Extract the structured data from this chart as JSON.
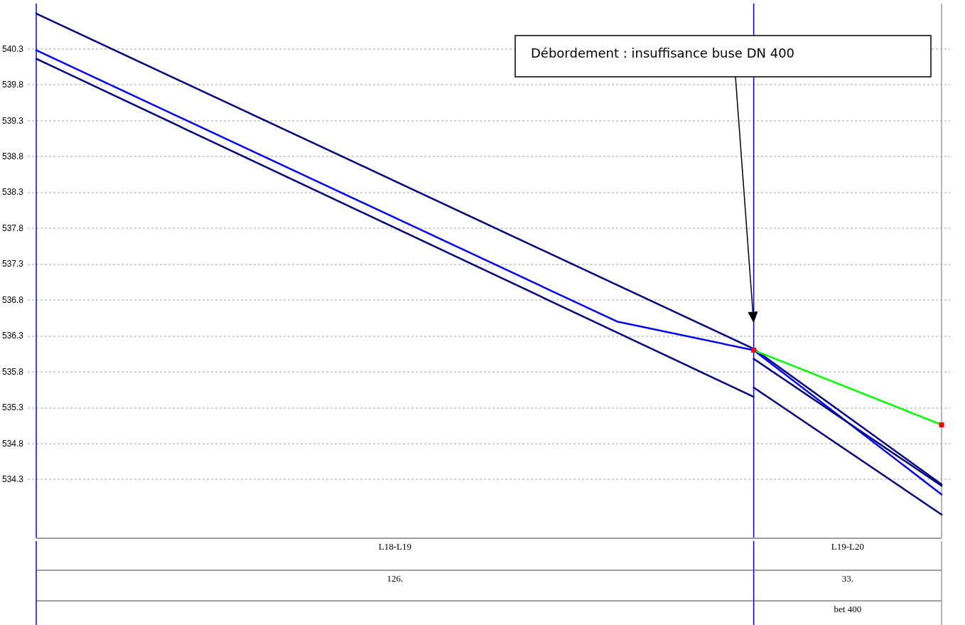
{
  "chart_data": {
    "type": "line",
    "annotations": [
      "Débordement : insuffisance buse DN 400",
      "L18-L19",
      "126.",
      "L19-L20",
      "33.",
      "bet 400"
    ],
    "categories": [
      null,
      null,
      null,
      null,
      null,
      null,
      null,
      null,
      null,
      null,
      null,
      null,
      null,
      null,
      null,
      null,
      null,
      null,
      null,
      null,
      null,
      null,
      null,
      null,
      null,
      null,
      null,
      null,
      null,
      null,
      null,
      null,
      null,
      null,
      null,
      null,
      null,
      null,
      null,
      null,
      null,
      null,
      null,
      null,
      null,
      null,
      null,
      null,
      null,
      null,
      null,
      null,
      null,
      null
    ],
    "ylim": [
      533.48,
      540.93
    ],
    "yticks": [
      534.3,
      534.8,
      535.3,
      535.8,
      536.3,
      536.8,
      537.3,
      537.8,
      538.3,
      538.8,
      539.3,
      539.8,
      540.3
    ],
    "tick_labels": "y",
    "grid": "y",
    "marker": "none",
    "line_style": "solid",
    "series": [
      {
        "color": "#000080",
        "values": [
          540.79,
          null,
          null,
          null,
          null,
          null,
          null,
          null,
          null,
          null,
          null,
          null,
          null,
          null,
          null,
          null,
          null,
          null,
          null,
          null,
          null,
          null,
          null,
          null,
          null,
          null,
          null,
          null,
          null,
          null,
          null,
          null,
          null,
          null,
          null,
          null,
          null,
          null,
          null,
          null,
          null,
          null,
          536.12,
          null,
          null,
          null,
          null,
          null,
          null,
          null,
          null,
          null,
          null,
          534.23
        ]
      },
      {
        "color": "#0000ff",
        "values": [
          540.28,
          null,
          null,
          null,
          null,
          null,
          null,
          null,
          null,
          null,
          null,
          null,
          null,
          null,
          null,
          null,
          null,
          null,
          null,
          null,
          null,
          null,
          null,
          null,
          null,
          null,
          null,
          null,
          null,
          null,
          null,
          null,
          null,
          null,
          536.5,
          null,
          null,
          null,
          null,
          null,
          null,
          null,
          536.1,
          null,
          null,
          null,
          null,
          null,
          null,
          null,
          null,
          null,
          null,
          534.09
        ]
      },
      {
        "color": "#000080",
        "values": [
          540.16,
          null,
          null,
          null,
          null,
          null,
          null,
          null,
          null,
          null,
          null,
          null,
          null,
          null,
          null,
          null,
          null,
          null,
          null,
          null,
          null,
          null,
          null,
          null,
          null,
          null,
          null,
          null,
          null,
          null,
          null,
          null,
          null,
          null,
          null,
          null,
          null,
          null,
          null,
          null,
          null,
          null,
          535.45,
          null,
          null,
          null,
          null,
          null,
          null,
          null,
          null,
          null,
          null,
          null
        ]
      },
      {
        "color": "#000080",
        "values": [
          null,
          null,
          null,
          null,
          null,
          null,
          null,
          null,
          null,
          null,
          null,
          null,
          null,
          null,
          null,
          null,
          null,
          null,
          null,
          null,
          null,
          null,
          null,
          null,
          null,
          null,
          null,
          null,
          null,
          null,
          null,
          null,
          null,
          null,
          null,
          null,
          null,
          null,
          null,
          null,
          null,
          null,
          535.58,
          null,
          null,
          null,
          null,
          null,
          null,
          null,
          null,
          null,
          null,
          533.81
        ]
      },
      {
        "color": "#000080",
        "values": [
          null,
          null,
          null,
          null,
          null,
          null,
          null,
          null,
          null,
          null,
          null,
          null,
          null,
          null,
          null,
          null,
          null,
          null,
          null,
          null,
          null,
          null,
          null,
          null,
          null,
          null,
          null,
          null,
          null,
          null,
          null,
          null,
          null,
          null,
          null,
          null,
          null,
          null,
          null,
          null,
          null,
          null,
          535.98,
          null,
          null,
          null,
          null,
          null,
          null,
          null,
          null,
          null,
          null,
          534.21
        ]
      },
      {
        "color": "#00ff00",
        "marker": "square",
        "values": [
          null,
          null,
          null,
          null,
          null,
          null,
          null,
          null,
          null,
          null,
          null,
          null,
          null,
          null,
          null,
          null,
          null,
          null,
          null,
          null,
          null,
          null,
          null,
          null,
          null,
          null,
          null,
          null,
          null,
          null,
          null,
          null,
          null,
          null,
          null,
          null,
          null,
          null,
          null,
          null,
          null,
          null,
          536.1,
          null,
          null,
          null,
          null,
          null,
          null,
          null,
          null,
          null,
          null,
          535.06
        ]
      }
    ]
  }
}
